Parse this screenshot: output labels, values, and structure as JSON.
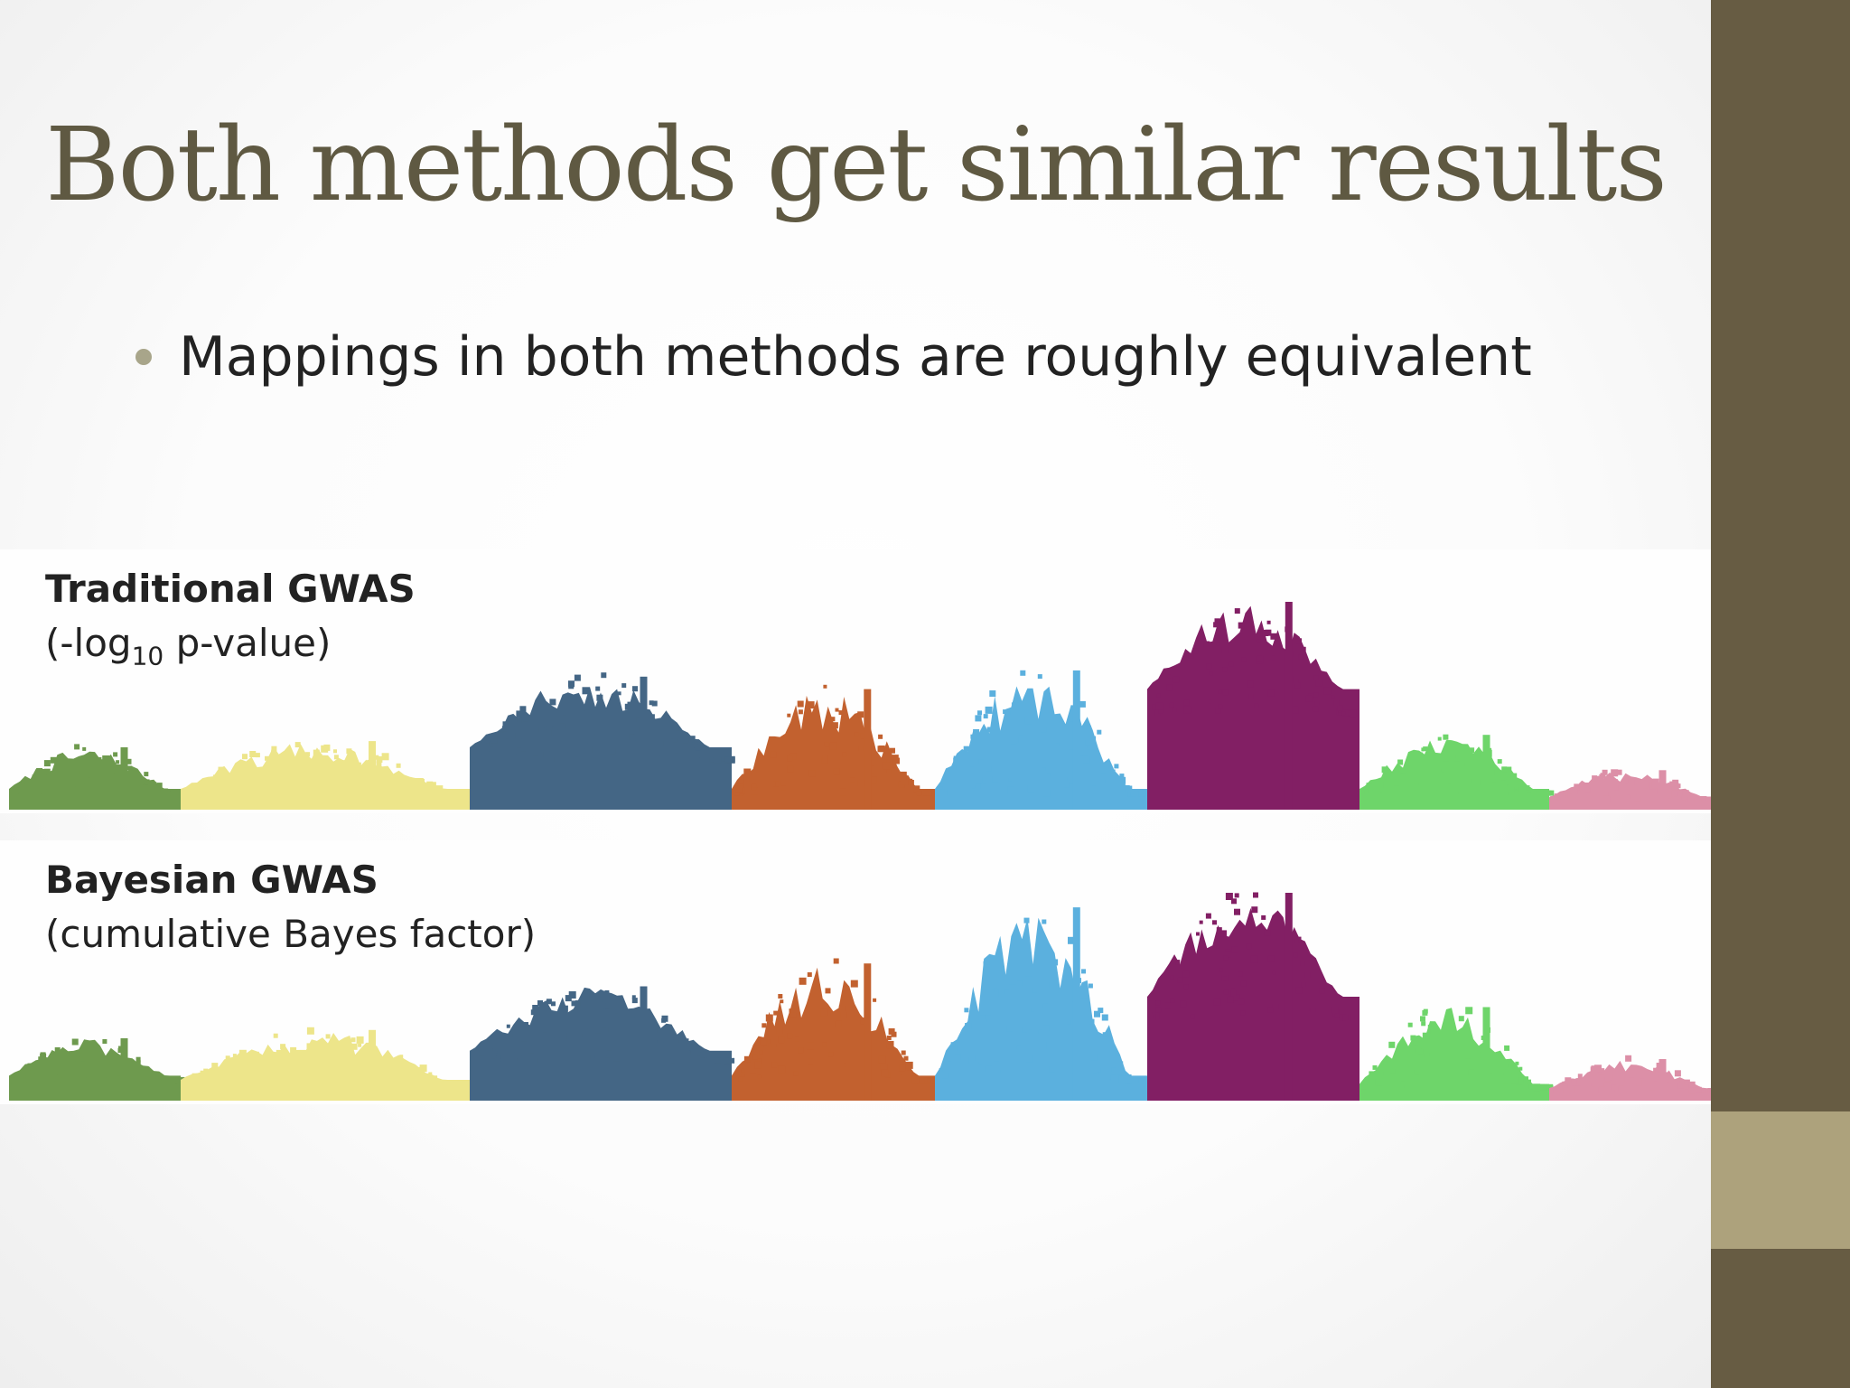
{
  "slide": {
    "title": "Both methods get similar results",
    "bullet": "Mappings in both methods are roughly equivalent",
    "colors": {
      "title": "#5f5942",
      "sidebar": "#675c43",
      "sidebar_accent": "#ada27c",
      "bullet_dot": "#a8a58a"
    }
  },
  "chart_data": [
    {
      "type": "scatter",
      "chart_kind": "manhattan",
      "title": "Traditional GWAS",
      "subtitle_prefix": "(-log",
      "subtitle_sub": "10",
      "subtitle_suffix": " p-value)",
      "grid": false,
      "axes_visible": false,
      "series": [
        {
          "color": "#6e9a4e",
          "base": 0.1,
          "peak": 0.3
        },
        {
          "color": "#ede58a",
          "base": 0.1,
          "peak": 0.33
        },
        {
          "color": "#446685",
          "base": 0.3,
          "peak": 0.64
        },
        {
          "color": "#c2612f",
          "base": 0.1,
          "peak": 0.58
        },
        {
          "color": "#5bb0de",
          "base": 0.1,
          "peak": 0.67
        },
        {
          "color": "#821f64",
          "base": 0.58,
          "peak": 1.0
        },
        {
          "color": "#6ed56a",
          "base": 0.1,
          "peak": 0.36
        },
        {
          "color": "#dc8fa7",
          "base": 0.06,
          "peak": 0.19
        }
      ],
      "series_widths": [
        190,
        320,
        290,
        225,
        235,
        235,
        210,
        187
      ]
    },
    {
      "type": "scatter",
      "chart_kind": "manhattan",
      "title": "Bayesian GWAS",
      "subtitle": "(cumulative Bayes factor)",
      "grid": false,
      "axes_visible": false,
      "series": [
        {
          "color": "#6e9a4e",
          "base": 0.12,
          "peak": 0.3
        },
        {
          "color": "#ede58a",
          "base": 0.1,
          "peak": 0.34
        },
        {
          "color": "#446685",
          "base": 0.24,
          "peak": 0.55
        },
        {
          "color": "#c2612f",
          "base": 0.12,
          "peak": 0.66
        },
        {
          "color": "#5bb0de",
          "base": 0.12,
          "peak": 0.93
        },
        {
          "color": "#821f64",
          "base": 0.5,
          "peak": 1.0
        },
        {
          "color": "#6ed56a",
          "base": 0.08,
          "peak": 0.45
        },
        {
          "color": "#dc8fa7",
          "base": 0.06,
          "peak": 0.2
        }
      ],
      "series_widths": [
        190,
        320,
        290,
        225,
        235,
        235,
        210,
        187
      ]
    }
  ]
}
